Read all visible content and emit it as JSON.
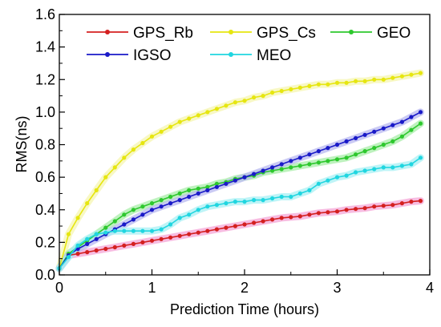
{
  "chart_data": {
    "type": "line",
    "title": "",
    "xlabel": "Prediction Time (hours)",
    "ylabel": "RMS(ns)",
    "xlim": [
      0,
      4
    ],
    "ylim": [
      0.0,
      1.6
    ],
    "xticks": [
      0,
      1,
      2,
      3,
      4
    ],
    "xtick_labels": [
      "0",
      "1",
      "2",
      "3",
      "4"
    ],
    "yticks": [
      0.0,
      0.2,
      0.4,
      0.6,
      0.8,
      1.0,
      1.2,
      1.4,
      1.6
    ],
    "ytick_labels": [
      "0.0",
      "0.2",
      "0.4",
      "0.6",
      "0.8",
      "1.0",
      "1.2",
      "1.4",
      "1.6"
    ],
    "grid": false,
    "legend": "top, inside plot area",
    "legend_rows": [
      [
        0,
        1,
        2
      ],
      [
        3,
        4
      ]
    ],
    "x": [
      0.0,
      0.1,
      0.2,
      0.3,
      0.4,
      0.5,
      0.6,
      0.7,
      0.8,
      0.9,
      1.0,
      1.1,
      1.2,
      1.3,
      1.4,
      1.5,
      1.6,
      1.7,
      1.8,
      1.9,
      2.0,
      2.1,
      2.2,
      2.3,
      2.4,
      2.5,
      2.6,
      2.7,
      2.8,
      2.9,
      3.0,
      3.1,
      3.2,
      3.3,
      3.4,
      3.5,
      3.6,
      3.7,
      3.8,
      3.9
    ],
    "series": [
      {
        "name": "GPS_Rb",
        "color": "#d42020",
        "band_color": "#f4a6d7",
        "values": [
          0.04,
          0.12,
          0.13,
          0.14,
          0.15,
          0.16,
          0.17,
          0.18,
          0.19,
          0.2,
          0.21,
          0.22,
          0.23,
          0.24,
          0.25,
          0.26,
          0.27,
          0.28,
          0.29,
          0.3,
          0.31,
          0.32,
          0.33,
          0.34,
          0.35,
          0.355,
          0.36,
          0.37,
          0.38,
          0.385,
          0.39,
          0.4,
          0.405,
          0.41,
          0.42,
          0.425,
          0.43,
          0.44,
          0.45,
          0.455
        ]
      },
      {
        "name": "GPS_Cs",
        "color": "#e6e610",
        "band_color": "#f6f6b0",
        "values": [
          0.04,
          0.25,
          0.35,
          0.44,
          0.52,
          0.6,
          0.66,
          0.72,
          0.77,
          0.81,
          0.85,
          0.88,
          0.91,
          0.94,
          0.96,
          0.98,
          1.0,
          1.02,
          1.04,
          1.06,
          1.07,
          1.09,
          1.1,
          1.12,
          1.13,
          1.14,
          1.15,
          1.16,
          1.17,
          1.17,
          1.18,
          1.18,
          1.19,
          1.19,
          1.2,
          1.2,
          1.21,
          1.22,
          1.23,
          1.24
        ]
      },
      {
        "name": "GEO",
        "color": "#2ec82e",
        "band_color": "#a8eea8",
        "values": [
          0.04,
          0.13,
          0.17,
          0.21,
          0.25,
          0.29,
          0.33,
          0.37,
          0.4,
          0.42,
          0.44,
          0.46,
          0.48,
          0.5,
          0.52,
          0.53,
          0.54,
          0.56,
          0.57,
          0.59,
          0.6,
          0.61,
          0.63,
          0.64,
          0.65,
          0.66,
          0.67,
          0.68,
          0.69,
          0.7,
          0.71,
          0.72,
          0.74,
          0.76,
          0.78,
          0.8,
          0.82,
          0.85,
          0.89,
          0.93
        ]
      },
      {
        "name": "IGSO",
        "color": "#1a1ac8",
        "band_color": "#b8b8f0",
        "values": [
          0.04,
          0.12,
          0.16,
          0.19,
          0.22,
          0.25,
          0.28,
          0.31,
          0.34,
          0.37,
          0.4,
          0.42,
          0.44,
          0.46,
          0.48,
          0.5,
          0.52,
          0.54,
          0.56,
          0.58,
          0.6,
          0.62,
          0.64,
          0.66,
          0.68,
          0.7,
          0.72,
          0.74,
          0.76,
          0.78,
          0.8,
          0.82,
          0.84,
          0.86,
          0.88,
          0.9,
          0.92,
          0.94,
          0.97,
          1.0
        ]
      },
      {
        "name": "MEO",
        "color": "#20d6e0",
        "band_color": "#a8f0f4",
        "values": [
          0.04,
          0.11,
          0.18,
          0.22,
          0.25,
          0.26,
          0.27,
          0.27,
          0.27,
          0.27,
          0.27,
          0.28,
          0.31,
          0.35,
          0.37,
          0.4,
          0.42,
          0.43,
          0.44,
          0.45,
          0.45,
          0.46,
          0.46,
          0.47,
          0.48,
          0.48,
          0.5,
          0.52,
          0.56,
          0.58,
          0.6,
          0.61,
          0.63,
          0.64,
          0.65,
          0.66,
          0.66,
          0.67,
          0.68,
          0.72
        ]
      }
    ]
  }
}
